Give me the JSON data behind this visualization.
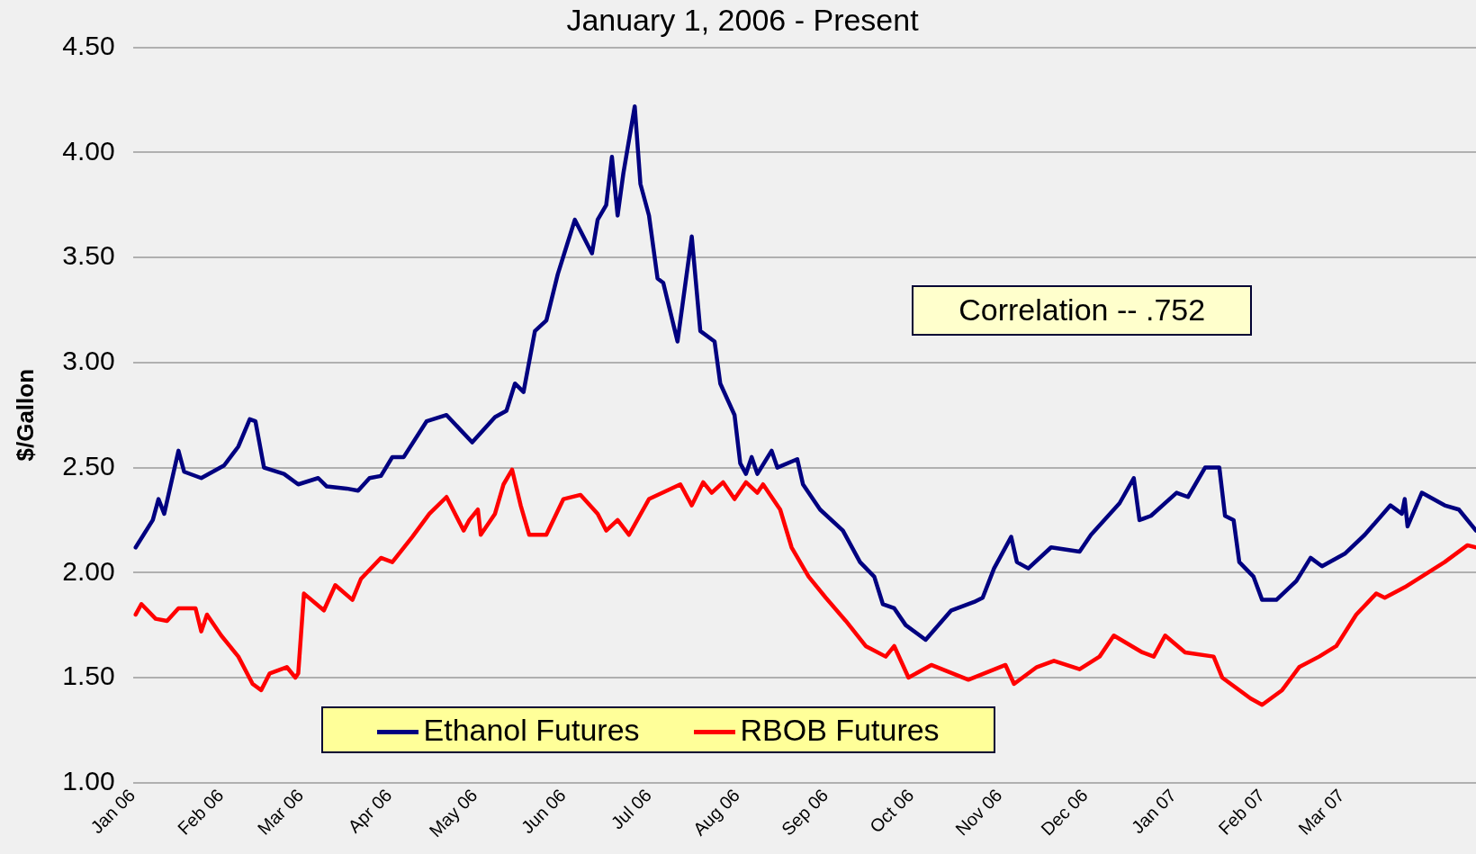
{
  "chart_data": {
    "type": "line",
    "title": "January 1, 2006 - Present",
    "ylabel": "$/Gallon",
    "annotations": [
      "Correlation -- .752"
    ],
    "xlim": [
      "2006-01-01",
      "2007-04-17"
    ],
    "xticks": [
      {
        "value": "2006-01-01",
        "label": "Jan 06"
      },
      {
        "value": "2006-02-01",
        "label": "Feb 06"
      },
      {
        "value": "2006-03-01",
        "label": "Mar 06"
      },
      {
        "value": "2006-04-01",
        "label": "Apr 06"
      },
      {
        "value": "2006-05-01",
        "label": "May 06"
      },
      {
        "value": "2006-06-01",
        "label": "Jun 06"
      },
      {
        "value": "2006-07-01",
        "label": "Jul 06"
      },
      {
        "value": "2006-08-01",
        "label": "Aug 06"
      },
      {
        "value": "2006-09-01",
        "label": "Sep 06"
      },
      {
        "value": "2006-10-01",
        "label": "Oct 06"
      },
      {
        "value": "2006-11-01",
        "label": "Nov 06"
      },
      {
        "value": "2006-12-01",
        "label": "Dec 06"
      },
      {
        "value": "2007-01-01",
        "label": "Jan 07"
      },
      {
        "value": "2007-02-01",
        "label": "Feb 07"
      },
      {
        "value": "2007-03-01",
        "label": "Mar 07"
      }
    ],
    "ylim": [
      1,
      4.5
    ],
    "yticks": [
      {
        "value": 1,
        "label": "1.00"
      },
      {
        "value": 1.5,
        "label": "1.50"
      },
      {
        "value": 2,
        "label": "2.00"
      },
      {
        "value": 2.5,
        "label": "2.50"
      },
      {
        "value": 3,
        "label": "3.00"
      },
      {
        "value": 3.5,
        "label": "3.50"
      },
      {
        "value": 4,
        "label": "4.00"
      },
      {
        "value": 4.5,
        "label": "4.50"
      }
    ],
    "grid": "y",
    "legend": "bottom",
    "marker": "none",
    "line_style": "solid",
    "series": [
      {
        "name": "Ethanol Futures",
        "color": "#000080",
        "x": [
          "2006-01-02",
          "2006-01-08",
          "2006-01-10",
          "2006-01-12",
          "2006-01-17",
          "2006-01-19",
          "2006-01-25",
          "2006-02-02",
          "2006-02-07",
          "2006-02-11",
          "2006-02-13",
          "2006-02-16",
          "2006-02-23",
          "2006-02-28",
          "2006-03-07",
          "2006-03-10",
          "2006-03-17",
          "2006-03-21",
          "2006-03-25",
          "2006-03-29",
          "2006-04-02",
          "2006-04-06",
          "2006-04-14",
          "2006-04-21",
          "2006-04-30",
          "2006-05-08",
          "2006-05-12",
          "2006-05-15",
          "2006-05-18",
          "2006-05-22",
          "2006-05-26",
          "2006-05-30",
          "2006-06-02",
          "2006-06-05",
          "2006-06-11",
          "2006-06-13",
          "2006-06-16",
          "2006-06-18",
          "2006-06-20",
          "2006-06-22",
          "2006-06-26",
          "2006-06-28",
          "2006-07-01",
          "2006-07-04",
          "2006-07-06",
          "2006-07-11",
          "2006-07-16",
          "2006-07-19",
          "2006-07-24",
          "2006-07-26",
          "2006-07-31",
          "2006-08-02",
          "2006-08-04",
          "2006-08-06",
          "2006-08-08",
          "2006-08-13",
          "2006-08-15",
          "2006-08-22",
          "2006-08-24",
          "2006-08-30",
          "2006-09-07",
          "2006-09-13",
          "2006-09-18",
          "2006-09-21",
          "2006-09-25",
          "2006-09-29",
          "2006-10-06",
          "2006-10-15",
          "2006-10-23",
          "2006-10-26",
          "2006-10-30",
          "2006-11-05",
          "2006-11-07",
          "2006-11-11",
          "2006-11-19",
          "2006-11-29",
          "2006-12-03",
          "2006-12-13",
          "2006-12-18",
          "2006-12-20",
          "2006-12-24",
          "2007-01-02",
          "2007-01-06",
          "2007-01-12",
          "2007-01-17",
          "2007-01-19",
          "2007-01-22",
          "2007-01-24",
          "2007-01-29",
          "2007-02-01",
          "2007-02-06",
          "2007-02-13",
          "2007-02-18",
          "2007-02-22",
          "2007-03-02",
          "2007-03-09",
          "2007-03-18",
          "2007-03-22",
          "2007-03-23",
          "2007-03-24",
          "2007-03-29",
          "2007-04-06",
          "2007-04-11",
          "2007-04-17"
        ],
        "values": [
          2.12,
          2.25,
          2.35,
          2.28,
          2.58,
          2.48,
          2.45,
          2.51,
          2.6,
          2.73,
          2.72,
          2.5,
          2.47,
          2.42,
          2.45,
          2.41,
          2.4,
          2.39,
          2.45,
          2.46,
          2.55,
          2.55,
          2.72,
          2.75,
          2.62,
          2.74,
          2.77,
          2.9,
          2.86,
          3.15,
          3.2,
          3.42,
          3.55,
          3.68,
          3.52,
          3.68,
          3.75,
          3.98,
          3.7,
          3.9,
          4.22,
          3.85,
          3.7,
          3.4,
          3.38,
          3.1,
          3.6,
          3.15,
          3.1,
          2.9,
          2.75,
          2.52,
          2.47,
          2.55,
          2.47,
          2.58,
          2.5,
          2.54,
          2.42,
          2.3,
          2.2,
          2.05,
          1.98,
          1.85,
          1.83,
          1.75,
          1.68,
          1.82,
          1.86,
          1.88,
          2.02,
          2.17,
          2.05,
          2.02,
          2.12,
          2.1,
          2.18,
          2.33,
          2.45,
          2.25,
          2.27,
          2.38,
          2.36,
          2.5,
          2.5,
          2.27,
          2.25,
          2.05,
          1.98,
          1.87,
          1.87,
          1.96,
          2.07,
          2.03,
          2.09,
          2.18,
          2.32,
          2.28,
          2.35,
          2.22,
          2.38,
          2.32,
          2.3,
          2.2
        ]
      },
      {
        "name": "RBOB Futures",
        "color": "#ff0000",
        "x": [
          "2006-01-02",
          "2006-01-04",
          "2006-01-09",
          "2006-01-13",
          "2006-01-17",
          "2006-01-23",
          "2006-01-25",
          "2006-01-27",
          "2006-02-01",
          "2006-02-07",
          "2006-02-12",
          "2006-02-15",
          "2006-02-18",
          "2006-02-24",
          "2006-02-27",
          "2006-02-28",
          "2006-03-02",
          "2006-03-09",
          "2006-03-13",
          "2006-03-19",
          "2006-03-22",
          "2006-03-29",
          "2006-04-02",
          "2006-04-09",
          "2006-04-15",
          "2006-04-21",
          "2006-04-27",
          "2006-04-29",
          "2006-05-02",
          "2006-05-03",
          "2006-05-08",
          "2006-05-11",
          "2006-05-14",
          "2006-05-17",
          "2006-05-20",
          "2006-05-26",
          "2006-06-01",
          "2006-06-07",
          "2006-06-13",
          "2006-06-16",
          "2006-06-20",
          "2006-06-24",
          "2006-07-01",
          "2006-07-12",
          "2006-07-16",
          "2006-07-20",
          "2006-07-23",
          "2006-07-27",
          "2006-07-31",
          "2006-08-04",
          "2006-08-08",
          "2006-08-10",
          "2006-08-16",
          "2006-08-20",
          "2006-08-26",
          "2006-09-01",
          "2006-09-08",
          "2006-09-15",
          "2006-09-22",
          "2006-09-25",
          "2006-09-30",
          "2006-10-08",
          "2006-10-21",
          "2006-11-03",
          "2006-11-06",
          "2006-11-14",
          "2006-11-20",
          "2006-11-29",
          "2006-12-06",
          "2006-12-11",
          "2006-12-21",
          "2006-12-25",
          "2006-12-29",
          "2007-01-05",
          "2007-01-15",
          "2007-01-18",
          "2007-01-28",
          "2007-02-01",
          "2007-02-08",
          "2007-02-14",
          "2007-02-21",
          "2007-02-27",
          "2007-03-06",
          "2007-03-13",
          "2007-03-16",
          "2007-03-23",
          "2007-03-30",
          "2007-04-06",
          "2007-04-14",
          "2007-04-17"
        ],
        "values": [
          1.8,
          1.85,
          1.78,
          1.77,
          1.83,
          1.83,
          1.72,
          1.8,
          1.7,
          1.6,
          1.47,
          1.44,
          1.52,
          1.55,
          1.5,
          1.52,
          1.9,
          1.82,
          1.94,
          1.87,
          1.97,
          2.07,
          2.05,
          2.17,
          2.28,
          2.36,
          2.2,
          2.25,
          2.3,
          2.18,
          2.28,
          2.42,
          2.49,
          2.32,
          2.18,
          2.18,
          2.35,
          2.37,
          2.28,
          2.2,
          2.25,
          2.18,
          2.35,
          2.42,
          2.32,
          2.43,
          2.38,
          2.43,
          2.35,
          2.43,
          2.38,
          2.42,
          2.3,
          2.12,
          1.98,
          1.88,
          1.77,
          1.65,
          1.6,
          1.65,
          1.5,
          1.56,
          1.49,
          1.56,
          1.47,
          1.55,
          1.58,
          1.54,
          1.6,
          1.7,
          1.62,
          1.6,
          1.7,
          1.62,
          1.6,
          1.5,
          1.4,
          1.37,
          1.44,
          1.55,
          1.6,
          1.65,
          1.8,
          1.9,
          1.88,
          1.93,
          1.99,
          2.05,
          2.13,
          2.12
        ]
      }
    ]
  }
}
